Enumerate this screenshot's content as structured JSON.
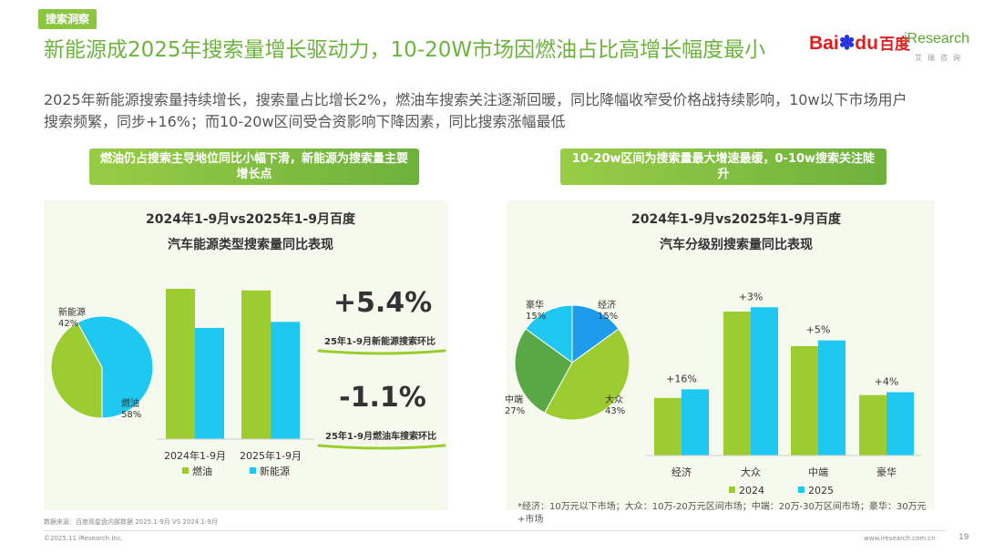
{
  "header": {
    "tag": "搜索洞察",
    "title": "新能源成2025年搜索量增长驱动力，10-20W市场因燃油占比高增长幅度最小",
    "subtitle": "2025年新能源搜索量持续增长，搜索量占比增长2%，燃油车搜索关注逐渐回暖，同比降幅收窄受价格战持续影响，10w以下市场用户搜索频繁，同步+16%；而10-20w区间受合资影响下降因素，同比搜索涨幅最低"
  },
  "logos": {
    "baidu_a": "Bai",
    "baidu_b": "du",
    "baidu_zh": "百度",
    "iresearch": "iResearch",
    "iresearch_sub": "艾瑞咨询"
  },
  "left": {
    "banner": "燃油仍占搜索主导地位同比小幅下滑，新能源为搜索量主要增长点",
    "kpi1_value": "+5.4%",
    "kpi1_label": "25年1-9月新能源搜索环比",
    "kpi2_value": "-1.1%",
    "kpi2_label": "25年1-9月燃油车搜索环比"
  },
  "right": {
    "banner": "10-20w区间为搜索量最大增速最缓，0-10w搜索关注陡升"
  },
  "colors": {
    "green": "#9ccc2f",
    "cyan": "#1ec8f0",
    "darkgreen": "#5aa845",
    "blue": "#1e9bea"
  },
  "chart_data": [
    {
      "type": "pie",
      "title": "2024年1-9月vs2025年1-9月百度汽车能源类型搜索量同比表现",
      "slices": [
        {
          "label": "新能源",
          "value": 42,
          "display": "42%"
        },
        {
          "label": "燃油",
          "value": 58,
          "display": "58%"
        }
      ]
    },
    {
      "type": "bar",
      "categories": [
        "2024年1-9月",
        "2025年1-9月"
      ],
      "series": [
        {
          "name": "燃油",
          "values": [
            100,
            98.9
          ]
        },
        {
          "name": "新能源",
          "values": [
            74,
            78
          ]
        }
      ],
      "legend": "bottom"
    },
    {
      "type": "pie",
      "title": "2024年1-9月vs2025年1-9月百度汽车分级别搜索量同比表现",
      "slices": [
        {
          "label": "经济",
          "value": 15,
          "display": "15%"
        },
        {
          "label": "大众",
          "value": 43,
          "display": "43%"
        },
        {
          "label": "中端",
          "value": 27,
          "display": "27%"
        },
        {
          "label": "豪华",
          "value": 15,
          "display": "15%"
        }
      ]
    },
    {
      "type": "bar",
      "categories": [
        "经济",
        "大众",
        "中端",
        "豪华"
      ],
      "series": [
        {
          "name": "2024",
          "values": [
            40,
            100,
            76,
            42
          ]
        },
        {
          "name": "2025",
          "values": [
            46,
            103,
            80,
            44
          ]
        }
      ],
      "annotations": [
        "+16%",
        "+3%",
        "+5%",
        "+4%"
      ],
      "legend": "bottom"
    }
  ],
  "footer": {
    "source": "数据来源：百度观星盘内部数据 2025.1-9月 VS 2024.1-9月",
    "note": "*经济：10万元以下市场；大众：10万-20万元区间市场；中端：20万-30万区间市场；豪华：30万元+市场",
    "copyright": "©2025.11 iResearch Inc.",
    "site": "www.iresearch.com.cn",
    "page": "19"
  }
}
